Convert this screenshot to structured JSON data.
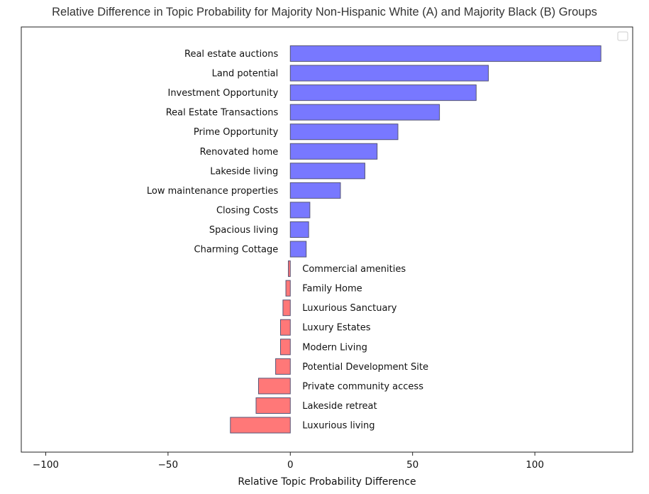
{
  "chart_data": {
    "type": "bar",
    "orientation": "horizontal",
    "title": "Relative Difference in Topic Probability for Majority Non-Hispanic White (A) and Majority Black (B) Groups",
    "xlabel": "Relative Topic Probability Difference",
    "ylabel": "",
    "xlim": [
      -110,
      140
    ],
    "xticks": [
      -100,
      -50,
      0,
      50,
      100
    ],
    "xtick_labels": [
      "−100",
      "−50",
      "0",
      "50",
      "100"
    ],
    "grid": false,
    "legend": "top-right (empty)",
    "colors": {
      "positive": "#7878ff",
      "negative": "#ff7878",
      "edge": "#555577"
    },
    "categories": [
      "Real estate auctions",
      "Land potential",
      "Investment Opportunity",
      "Real Estate Transactions",
      "Prime Opportunity",
      "Renovated home",
      "Lakeside living",
      "Low maintenance properties",
      "Closing Costs",
      "Spacious living",
      "Charming Cottage",
      "Commercial amenities",
      "Family Home",
      "Luxurious Sanctuary",
      "Luxury Estates",
      "Modern Living",
      "Potential Development Site",
      "Private community access",
      "Lakeside retreat",
      "Luxurious living"
    ],
    "values": [
      127,
      81,
      76,
      61,
      44,
      35.5,
      30.5,
      20.5,
      8,
      7.5,
      6.5,
      -0.8,
      -1.8,
      -3,
      -4,
      -4,
      -6,
      -13,
      -14,
      -24.5
    ]
  }
}
